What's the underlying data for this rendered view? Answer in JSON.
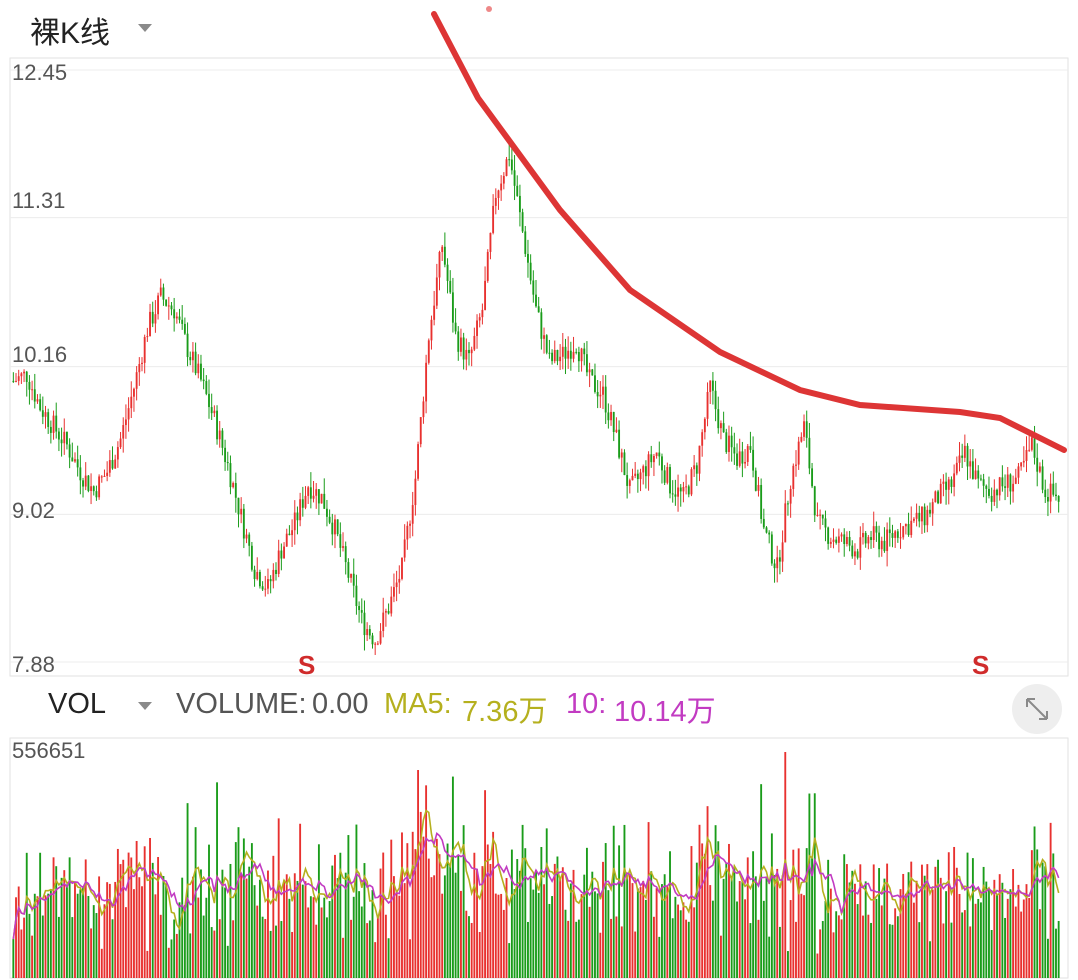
{
  "header": {
    "title": "裸K线"
  },
  "price_chart": {
    "y_ticks": [
      "12.45",
      "11.31",
      "10.16",
      "9.02",
      "7.88"
    ],
    "markers": [
      "S",
      "S"
    ]
  },
  "volume_header": {
    "label": "VOL",
    "volume_label": "VOLUME:",
    "volume_value": "0.00",
    "ma5_label": "MA5:",
    "ma5_value": "7.36万",
    "ma10_label": "10:",
    "ma10_value": "10.14万"
  },
  "volume_chart": {
    "max_label": "556651"
  },
  "colors": {
    "up": "#e8312f",
    "down": "#1a9c1a",
    "ma5": "#b5b01e",
    "ma10": "#c23bc2",
    "trendline": "#dd3535",
    "marker": "#d02b2b"
  },
  "chart_data": [
    {
      "type": "candlestick",
      "title": "",
      "ylim": [
        7.88,
        12.45
      ],
      "y_ticks": [
        12.45,
        11.31,
        10.16,
        9.02,
        7.88
      ],
      "series_close_approx": [
        10.05,
        10.1,
        9.85,
        9.7,
        9.55,
        9.35,
        9.2,
        9.35,
        9.6,
        10.0,
        10.45,
        10.7,
        10.6,
        10.3,
        10.05,
        9.75,
        9.4,
        9.0,
        8.6,
        8.45,
        8.75,
        8.95,
        9.25,
        9.15,
        8.9,
        8.55,
        8.2,
        8.05,
        8.3,
        8.6,
        9.3,
        10.4,
        11.1,
        10.4,
        10.2,
        10.6,
        11.5,
        11.8,
        11.2,
        10.6,
        10.2,
        10.25,
        10.35,
        10.05,
        9.95,
        9.6,
        9.2,
        9.35,
        9.5,
        9.25,
        9.15,
        9.4,
        10.0,
        9.6,
        9.45,
        9.55,
        8.9,
        8.6,
        9.3,
        9.7,
        8.95,
        8.85,
        8.8,
        8.75,
        8.85,
        8.8,
        8.9,
        8.95,
        9.0,
        9.15,
        9.25,
        9.5,
        9.25,
        9.2,
        9.25,
        9.3,
        9.55,
        9.2,
        9.15
      ],
      "markers": [
        {
          "label": "S",
          "position": "low near day 72"
        },
        {
          "label": "S",
          "position": "right near latest"
        }
      ],
      "trendline": "descending resistance drawn from early peak to the right edge"
    },
    {
      "type": "bar",
      "title": "",
      "ylim": [
        0,
        556651
      ],
      "series": [
        {
          "name": "VOLUME",
          "latest": 0.0
        },
        {
          "name": "MA5",
          "latest": "7.36万"
        },
        {
          "name": "10",
          "latest": "10.14万"
        }
      ]
    }
  ]
}
